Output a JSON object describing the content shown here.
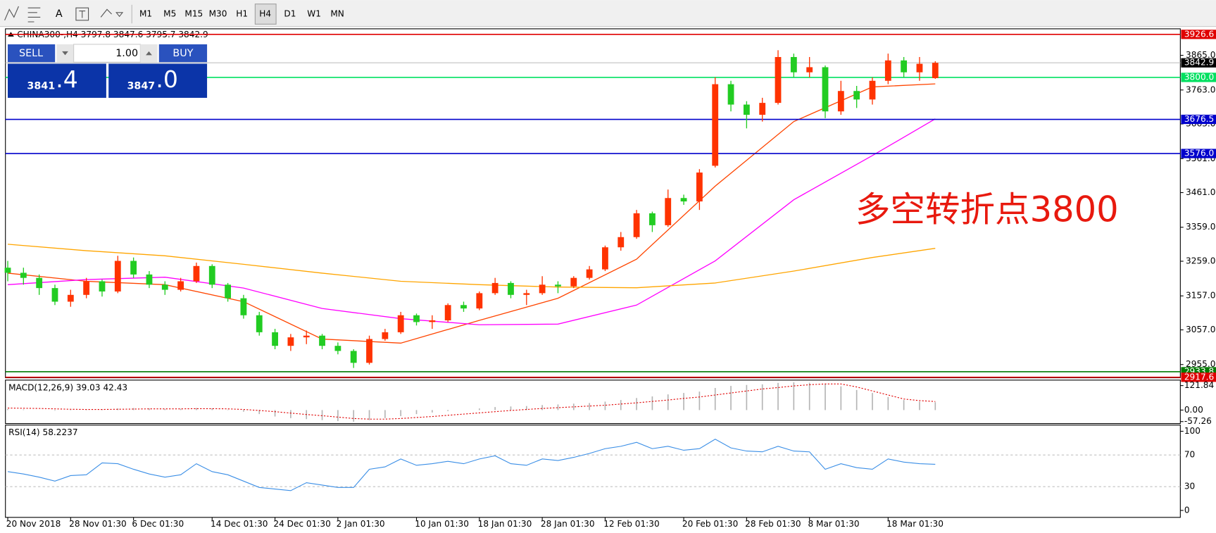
{
  "toolbar": {
    "tools": [
      "A"
    ],
    "timeframes": [
      "M1",
      "M5",
      "M15",
      "M30",
      "H1",
      "H4",
      "D1",
      "W1",
      "MN"
    ]
  },
  "trade_panel": {
    "sell": "SELL",
    "volume": "1.00",
    "buy": "BUY",
    "sell_big": "3841",
    "sell_small": ".4",
    "buy_big": "3847",
    "buy_small": ".0"
  },
  "chart_data": [
    {
      "type": "candlestick",
      "title": "CHINA300-,H4  3797.8 3847.6 3795.7 3842.9",
      "annotation": "多空转折点3800",
      "categories": [
        "20 Nov 2018",
        null,
        null,
        null,
        "28 Nov 01:30",
        null,
        null,
        null,
        "6 Dec 01:30",
        null,
        null,
        null,
        null,
        "14 Dec 01:30",
        null,
        null,
        null,
        "24 Dec 01:30",
        null,
        null,
        null,
        "2 Jan 01:30",
        null,
        null,
        null,
        null,
        "10 Jan 01:30",
        null,
        null,
        null,
        "18 Jan 01:30",
        null,
        null,
        null,
        "28 Jan 01:30",
        null,
        null,
        null,
        "12 Feb 01:30",
        null,
        null,
        null,
        null,
        "20 Feb 01:30",
        null,
        null,
        null,
        "28 Feb 01:30",
        null,
        null,
        null,
        "8 Mar 01:30",
        null,
        null,
        null,
        null,
        "18 Mar 01:30",
        null,
        null,
        null
      ],
      "candles": [
        [
          3240,
          3260,
          3200,
          3225
        ],
        [
          3225,
          3240,
          3190,
          3210
        ],
        [
          3210,
          3220,
          3160,
          3180
        ],
        [
          3180,
          3190,
          3130,
          3140
        ],
        [
          3140,
          3175,
          3125,
          3160
        ],
        [
          3160,
          3210,
          3150,
          3200
        ],
        [
          3200,
          3205,
          3155,
          3170
        ],
        [
          3170,
          3275,
          3165,
          3260
        ],
        [
          3260,
          3270,
          3210,
          3220
        ],
        [
          3220,
          3230,
          3180,
          3190
        ],
        [
          3190,
          3200,
          3160,
          3175
        ],
        [
          3175,
          3210,
          3170,
          3200
        ],
        [
          3200,
          3255,
          3195,
          3245
        ],
        [
          3245,
          3250,
          3180,
          3190
        ],
        [
          3190,
          3195,
          3140,
          3150
        ],
        [
          3150,
          3160,
          3090,
          3100
        ],
        [
          3100,
          3110,
          3040,
          3050
        ],
        [
          3050,
          3060,
          3000,
          3010
        ],
        [
          3010,
          3045,
          2995,
          3035
        ],
        [
          3035,
          3055,
          3015,
          3040
        ],
        [
          3040,
          3045,
          3000,
          3010
        ],
        [
          3010,
          3020,
          2985,
          2995
        ],
        [
          2995,
          3000,
          2945,
          2960
        ],
        [
          2960,
          3040,
          2955,
          3030
        ],
        [
          3030,
          3060,
          3025,
          3050
        ],
        [
          3050,
          3110,
          3045,
          3100
        ],
        [
          3100,
          3105,
          3070,
          3080
        ],
        [
          3080,
          3100,
          3060,
          3085
        ],
        [
          3085,
          3135,
          3080,
          3130
        ],
        [
          3130,
          3140,
          3110,
          3120
        ],
        [
          3120,
          3170,
          3115,
          3165
        ],
        [
          3165,
          3210,
          3160,
          3195
        ],
        [
          3195,
          3200,
          3150,
          3160
        ],
        [
          3160,
          3175,
          3130,
          3165
        ],
        [
          3165,
          3215,
          3160,
          3190
        ],
        [
          3190,
          3200,
          3165,
          3185
        ],
        [
          3185,
          3215,
          3180,
          3210
        ],
        [
          3210,
          3245,
          3205,
          3235
        ],
        [
          3235,
          3305,
          3230,
          3300
        ],
        [
          3300,
          3345,
          3290,
          3330
        ],
        [
          3330,
          3410,
          3325,
          3400
        ],
        [
          3400,
          3405,
          3345,
          3365
        ],
        [
          3365,
          3470,
          3360,
          3445
        ],
        [
          3445,
          3455,
          3425,
          3435
        ],
        [
          3435,
          3530,
          3410,
          3520
        ],
        [
          3540,
          3800,
          3535,
          3780
        ],
        [
          3780,
          3790,
          3700,
          3720
        ],
        [
          3720,
          3730,
          3650,
          3690
        ],
        [
          3690,
          3740,
          3670,
          3725
        ],
        [
          3725,
          3880,
          3720,
          3860
        ],
        [
          3860,
          3870,
          3800,
          3815
        ],
        [
          3815,
          3860,
          3800,
          3830
        ],
        [
          3830,
          3835,
          3680,
          3700
        ],
        [
          3700,
          3790,
          3690,
          3760
        ],
        [
          3760,
          3775,
          3710,
          3735
        ],
        [
          3735,
          3800,
          3720,
          3790
        ],
        [
          3790,
          3870,
          3780,
          3850
        ],
        [
          3850,
          3860,
          3800,
          3815
        ],
        [
          3815,
          3860,
          3790,
          3840
        ],
        [
          3797.8,
          3847.6,
          3795.7,
          3842.9
        ]
      ],
      "up_color": "#ff3300",
      "down_color": "#22cc22",
      "moving_averages": [
        {
          "color": "#ff4500",
          "x": [
            0,
            5,
            10,
            15,
            20,
            25,
            30,
            35,
            40,
            45,
            50,
            55,
            59
          ],
          "values": [
            3224,
            3200,
            3190,
            3140,
            3030,
            3018,
            3085,
            3150,
            3265,
            3480,
            3670,
            3772,
            3781
          ]
        },
        {
          "color": "#ff00ff",
          "x": [
            0,
            5,
            10,
            15,
            20,
            25,
            30,
            35,
            40,
            45,
            50,
            55,
            59
          ],
          "values": [
            3190,
            3205,
            3212,
            3180,
            3120,
            3090,
            3072,
            3074,
            3130,
            3260,
            3440,
            3570,
            3678
          ]
        },
        {
          "color": "#ffa500",
          "x": [
            0,
            5,
            10,
            15,
            20,
            25,
            30,
            35,
            40,
            45,
            50,
            55,
            59
          ],
          "values": [
            3309,
            3290,
            3275,
            3250,
            3224,
            3200,
            3190,
            3183,
            3181,
            3195,
            3230,
            3270,
            3297
          ]
        }
      ],
      "levels": [
        {
          "value": 3926.6,
          "color": "#e00000"
        },
        {
          "value": 3800,
          "label": "3800.0",
          "color": "#00e060"
        },
        {
          "value": 3676.5,
          "color": "#0000cc"
        },
        {
          "value": 3576,
          "label": "3576.0",
          "color": "#0000cc"
        },
        {
          "value": 2933.8,
          "color": "#007a00"
        },
        {
          "value": 2917.6,
          "color": "#e00000"
        }
      ],
      "ylim": [
        2916,
        3943
      ],
      "yticks": [
        {
          "value": 3865,
          "label": "3865.0"
        },
        {
          "value": 3763,
          "label": "3763.0"
        },
        {
          "value": 3663,
          "label": "3663.0"
        },
        {
          "value": 3561,
          "label": "3561.0"
        },
        {
          "value": 3461,
          "label": "3461.0"
        },
        {
          "value": 3359,
          "label": "3359.0"
        },
        {
          "value": 3259,
          "label": "3259.0"
        },
        {
          "value": 3157,
          "label": "3157.0"
        },
        {
          "value": 3057,
          "label": "3057.0"
        },
        {
          "value": 2955,
          "label": "2955.0"
        }
      ]
    },
    {
      "type": "macd",
      "title": "MACD(12,26,9) 39.03 42.43",
      "series": [
        {
          "color": "#b4b4b4",
          "values": [
            5,
            3,
            0,
            -3,
            -2,
            2,
            4,
            8,
            10,
            8,
            5,
            6,
            10,
            8,
            2,
            -8,
            -20,
            -32,
            -40,
            -45,
            -50,
            -55,
            -58,
            -50,
            -40,
            -30,
            -20,
            -12,
            -5,
            0,
            8,
            15,
            18,
            20,
            25,
            28,
            32,
            35,
            42,
            50,
            60,
            68,
            78,
            85,
            92,
            110,
            120,
            125,
            128,
            135,
            138,
            136,
            130,
            118,
            100,
            85,
            65,
            50,
            42,
            39.03
          ]
        },
        {
          "color": "#e00000",
          "values": [
            10,
            9,
            8,
            6,
            4,
            3,
            3,
            4,
            5,
            6,
            6,
            6,
            7,
            7,
            6,
            3,
            -2,
            -8,
            -15,
            -22,
            -28,
            -35,
            -42,
            -45,
            -45,
            -42,
            -37,
            -32,
            -26,
            -20,
            -14,
            -8,
            -2,
            3,
            8,
            12,
            16,
            20,
            24,
            30,
            36,
            43,
            50,
            58,
            65,
            75,
            85,
            95,
            105,
            112,
            120,
            126,
            130,
            130,
            115,
            95,
            75,
            55,
            47,
            42.43
          ]
        }
      ],
      "ylim": [
        -67,
        149
      ],
      "yticks": [
        121.84,
        {
          "value": 0,
          "label": "0.00"
        },
        -57.26
      ]
    },
    {
      "type": "line",
      "title": "RSI(14) 58.2237",
      "color": "#3a8ee6",
      "values": [
        49,
        46,
        42,
        37,
        44,
        45,
        60,
        59,
        52,
        46,
        42,
        45,
        59,
        49,
        45,
        37,
        29,
        27,
        25,
        35,
        32,
        29,
        29,
        52,
        55,
        65,
        57,
        59,
        62,
        59,
        65,
        69,
        59,
        57,
        65,
        63,
        67,
        72,
        78,
        81,
        86,
        78,
        81,
        76,
        78,
        90,
        79,
        75,
        74,
        81,
        75,
        74,
        52,
        59,
        54,
        52,
        65,
        61,
        59,
        58.2237
      ],
      "ylim": [
        -8.8,
        107.8
      ],
      "yticks": [
        100,
        70,
        30,
        0
      ]
    }
  ]
}
